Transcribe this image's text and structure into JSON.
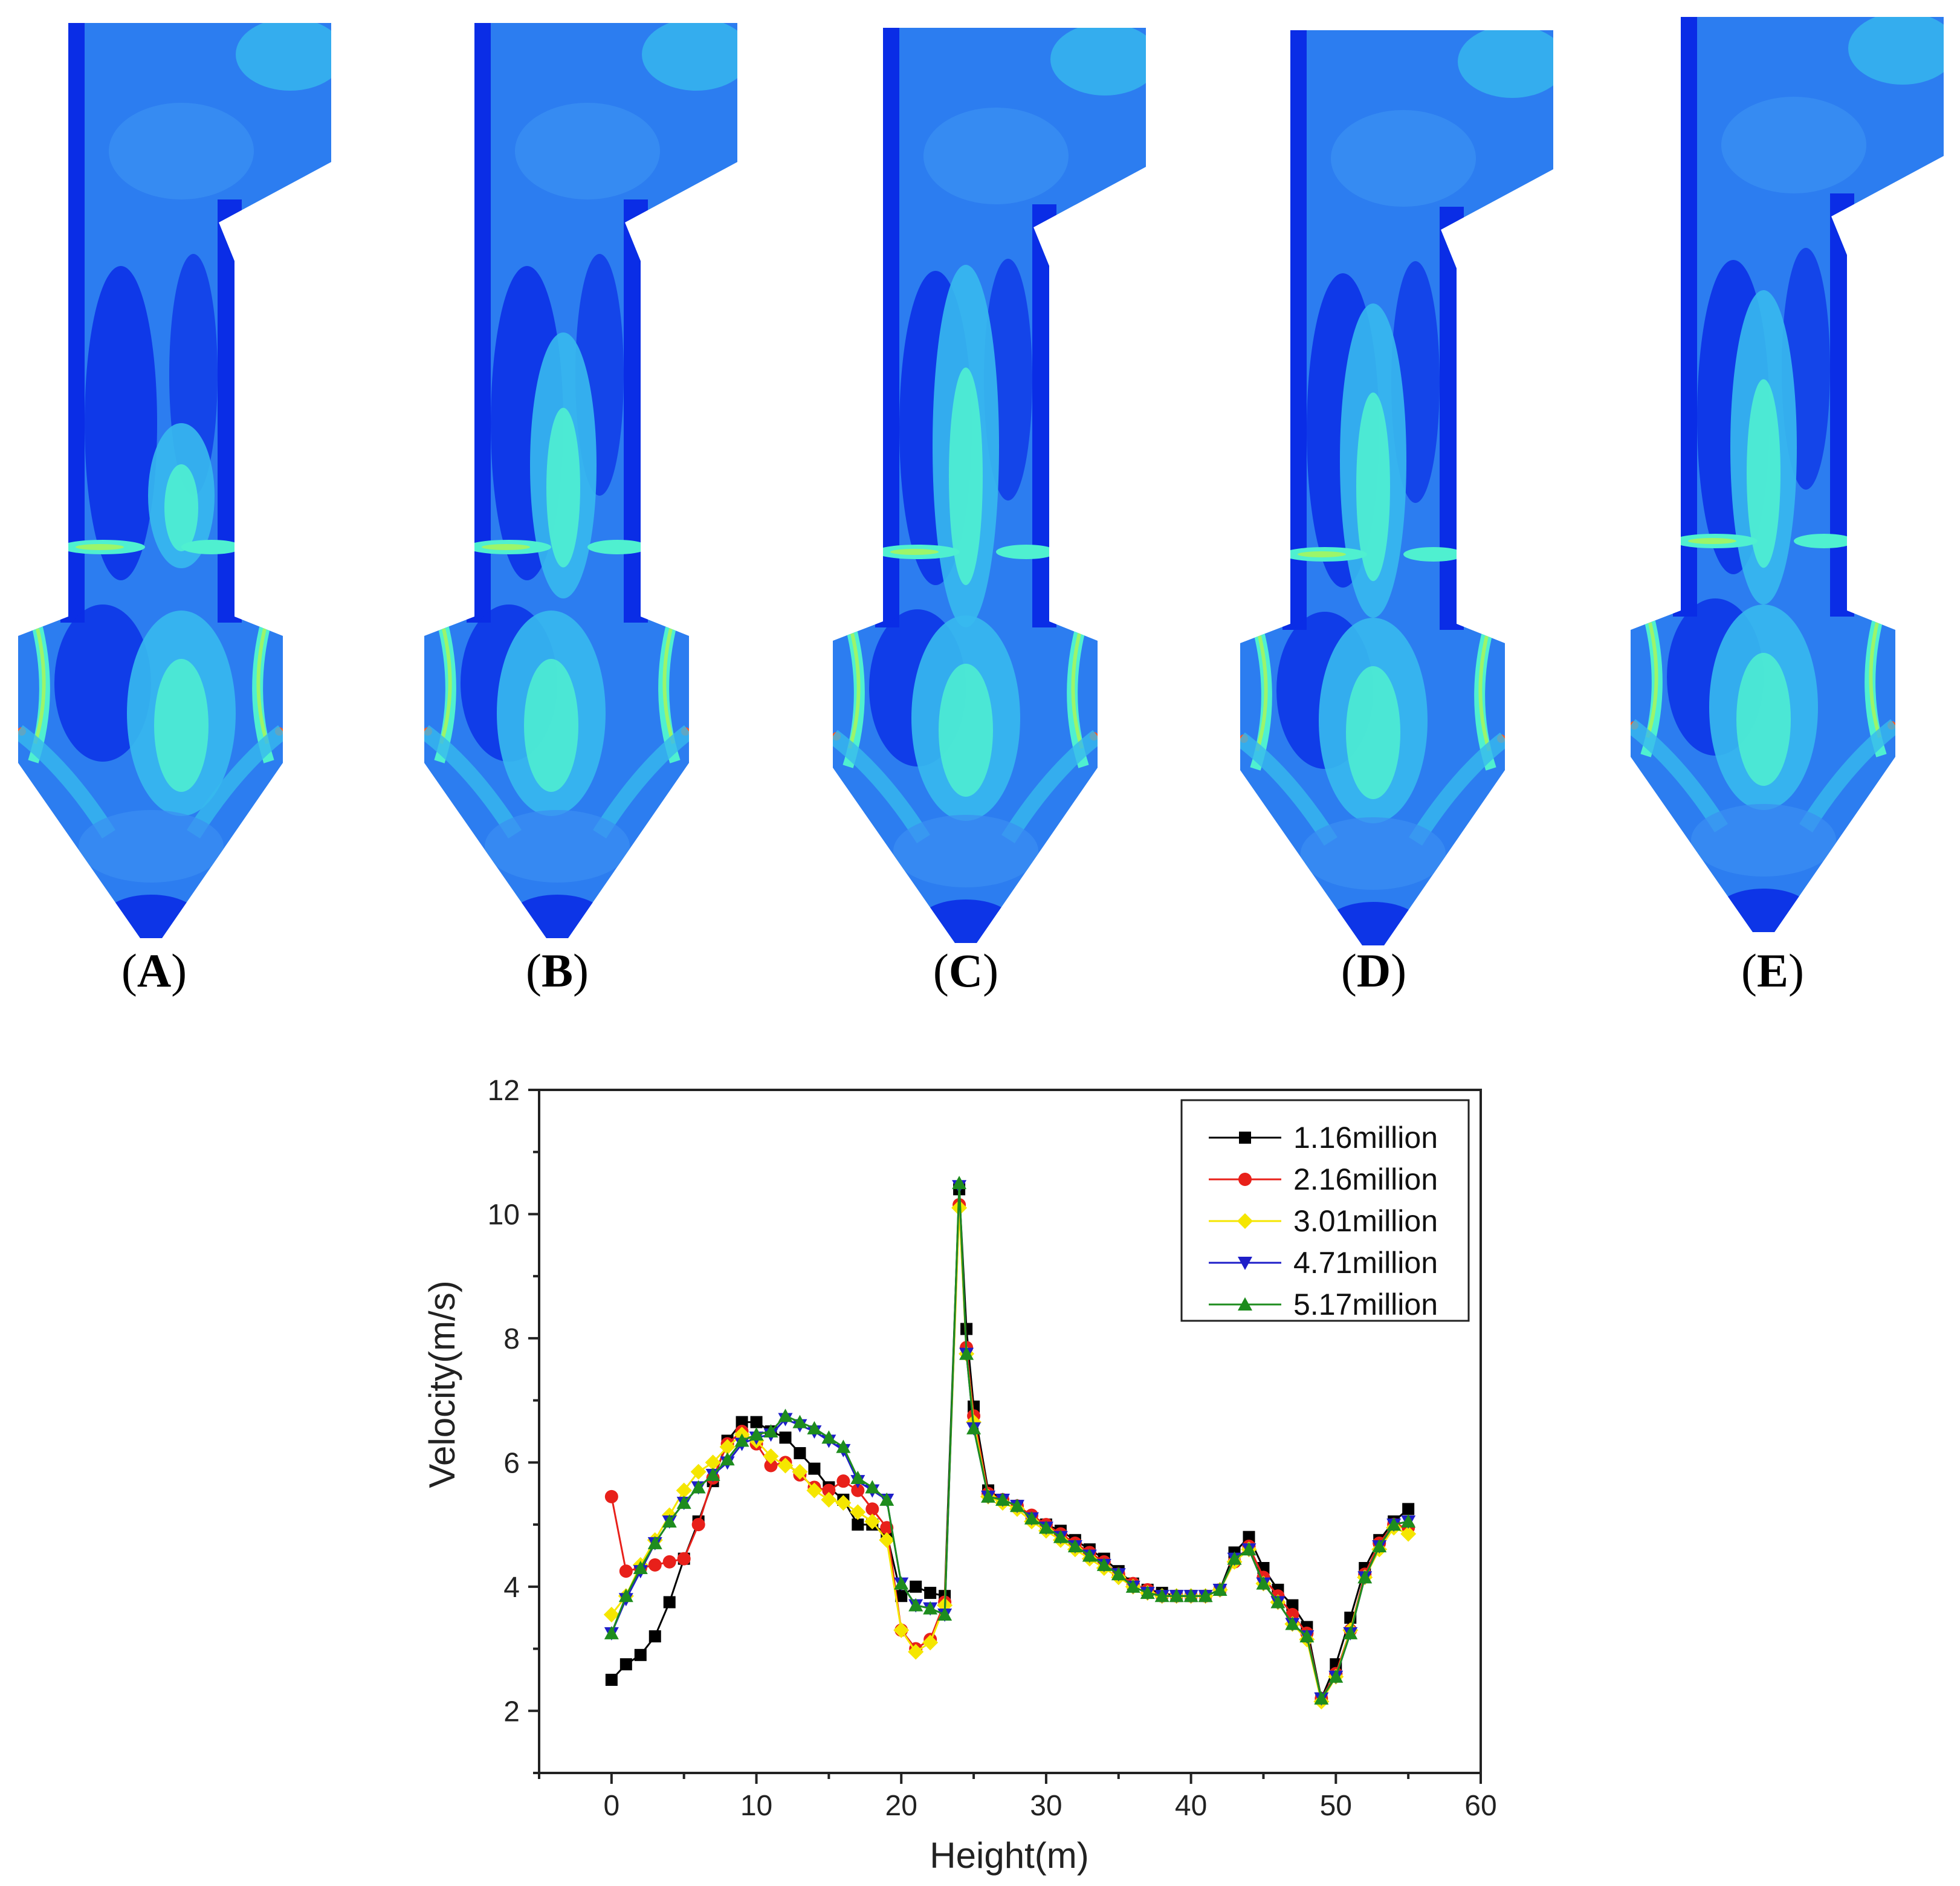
{
  "figure": {
    "panels": [
      {
        "id": "A",
        "label_open": "(",
        "label_letter": "A",
        "label_close": ")"
      },
      {
        "id": "B",
        "label_open": "(",
        "label_letter": "B",
        "label_close": ")"
      },
      {
        "id": "C",
        "label_open": "(",
        "label_letter": "C",
        "label_close": ")"
      },
      {
        "id": "D",
        "label_open": "(",
        "label_letter": "D",
        "label_close": ")"
      },
      {
        "id": "E",
        "label_open": "(",
        "label_letter": "E",
        "label_close": ")"
      }
    ],
    "contour_colors": {
      "low": "#0a2de6",
      "mid": "#2c7df0",
      "midhigh": "#37b9ee",
      "high": "#4ff0d0",
      "peak": "#9cf56a",
      "hot": "#ff5a1e"
    }
  },
  "chart_data": {
    "type": "line",
    "title": "",
    "xlabel": "Height(m)",
    "ylabel": "Velocity(m/s)",
    "xlim": [
      -5,
      60
    ],
    "ylim": [
      1,
      12
    ],
    "xticks": [
      0,
      10,
      20,
      30,
      40,
      50,
      60
    ],
    "yticks": [
      2,
      4,
      6,
      8,
      10,
      12
    ],
    "grid": false,
    "legend_position": "top-right",
    "x": [
      0,
      1,
      2,
      3,
      4,
      5,
      6,
      7,
      8,
      9,
      10,
      11,
      12,
      13,
      14,
      15,
      16,
      17,
      18,
      19,
      20,
      21,
      22,
      23,
      24,
      24.5,
      25,
      26,
      27,
      28,
      29,
      30,
      31,
      32,
      33,
      34,
      35,
      36,
      37,
      38,
      39,
      40,
      41,
      42,
      43,
      44,
      45,
      46,
      47,
      48,
      49,
      50,
      51,
      52,
      53,
      54,
      55
    ],
    "series": [
      {
        "name": "1.16million",
        "color": "#000000",
        "marker": "square",
        "values": [
          2.5,
          2.75,
          2.9,
          3.2,
          3.75,
          4.45,
          5.05,
          5.7,
          6.35,
          6.65,
          6.65,
          6.5,
          6.4,
          6.15,
          5.9,
          5.6,
          5.4,
          5.0,
          5.0,
          4.85,
          3.85,
          4.0,
          3.9,
          3.85,
          10.4,
          8.15,
          6.9,
          5.55,
          5.4,
          5.3,
          5.1,
          5.0,
          4.9,
          4.75,
          4.6,
          4.45,
          4.25,
          4.05,
          3.95,
          3.9,
          3.85,
          3.85,
          3.85,
          3.95,
          4.55,
          4.8,
          4.3,
          3.95,
          3.7,
          3.35,
          2.2,
          2.75,
          3.5,
          4.3,
          4.75,
          5.05,
          5.25
        ]
      },
      {
        "name": "2.16million",
        "color": "#e8201a",
        "marker": "circle",
        "values": [
          5.45,
          4.25,
          4.3,
          4.35,
          4.4,
          4.45,
          5.0,
          5.75,
          6.3,
          6.5,
          6.3,
          5.95,
          6.0,
          5.8,
          5.6,
          5.55,
          5.7,
          5.55,
          5.25,
          4.95,
          3.3,
          3.0,
          3.15,
          3.75,
          10.15,
          7.85,
          6.75,
          5.5,
          5.4,
          5.3,
          5.15,
          5.0,
          4.85,
          4.7,
          4.55,
          4.4,
          4.2,
          4.05,
          3.95,
          3.85,
          3.85,
          3.85,
          3.85,
          3.95,
          4.4,
          4.65,
          4.15,
          3.85,
          3.55,
          3.25,
          2.2,
          2.6,
          3.3,
          4.2,
          4.7,
          5.0,
          4.95
        ]
      },
      {
        "name": "3.01million",
        "color": "#f5e600",
        "marker": "diamond",
        "values": [
          3.55,
          3.85,
          4.35,
          4.75,
          5.15,
          5.55,
          5.85,
          6.0,
          6.25,
          6.45,
          6.35,
          6.1,
          5.95,
          5.85,
          5.55,
          5.4,
          5.35,
          5.2,
          5.05,
          4.75,
          3.3,
          2.95,
          3.1,
          3.7,
          10.1,
          7.75,
          6.65,
          5.45,
          5.35,
          5.25,
          5.05,
          4.9,
          4.75,
          4.6,
          4.45,
          4.3,
          4.15,
          4.0,
          3.9,
          3.85,
          3.85,
          3.85,
          3.85,
          3.95,
          4.4,
          4.6,
          4.05,
          3.75,
          3.4,
          3.15,
          2.15,
          2.55,
          3.3,
          4.15,
          4.6,
          4.95,
          4.85
        ]
      },
      {
        "name": "4.71million",
        "color": "#1e1ec8",
        "marker": "triangle-down",
        "values": [
          3.25,
          3.8,
          4.25,
          4.7,
          5.05,
          5.35,
          5.6,
          5.8,
          6.0,
          6.3,
          6.4,
          6.45,
          6.7,
          6.6,
          6.5,
          6.35,
          6.2,
          5.7,
          5.55,
          5.4,
          4.05,
          3.7,
          3.65,
          3.55,
          10.45,
          7.75,
          6.55,
          5.45,
          5.4,
          5.3,
          5.1,
          4.95,
          4.8,
          4.65,
          4.5,
          4.35,
          4.2,
          4.0,
          3.9,
          3.85,
          3.85,
          3.85,
          3.85,
          3.95,
          4.45,
          4.6,
          4.05,
          3.75,
          3.4,
          3.2,
          2.2,
          2.55,
          3.25,
          4.15,
          4.65,
          5.0,
          5.05
        ]
      },
      {
        "name": "5.17million",
        "color": "#1e8c1e",
        "marker": "triangle-up",
        "values": [
          3.25,
          3.85,
          4.3,
          4.7,
          5.05,
          5.35,
          5.6,
          5.8,
          6.05,
          6.35,
          6.45,
          6.5,
          6.75,
          6.65,
          6.55,
          6.4,
          6.25,
          5.75,
          5.6,
          5.4,
          4.05,
          3.7,
          3.65,
          3.55,
          10.5,
          7.75,
          6.55,
          5.45,
          5.4,
          5.3,
          5.1,
          4.95,
          4.8,
          4.65,
          4.5,
          4.35,
          4.2,
          4.0,
          3.9,
          3.85,
          3.85,
          3.85,
          3.85,
          3.95,
          4.45,
          4.6,
          4.05,
          3.75,
          3.4,
          3.2,
          2.2,
          2.55,
          3.25,
          4.15,
          4.65,
          5.0,
          5.05
        ]
      }
    ]
  }
}
